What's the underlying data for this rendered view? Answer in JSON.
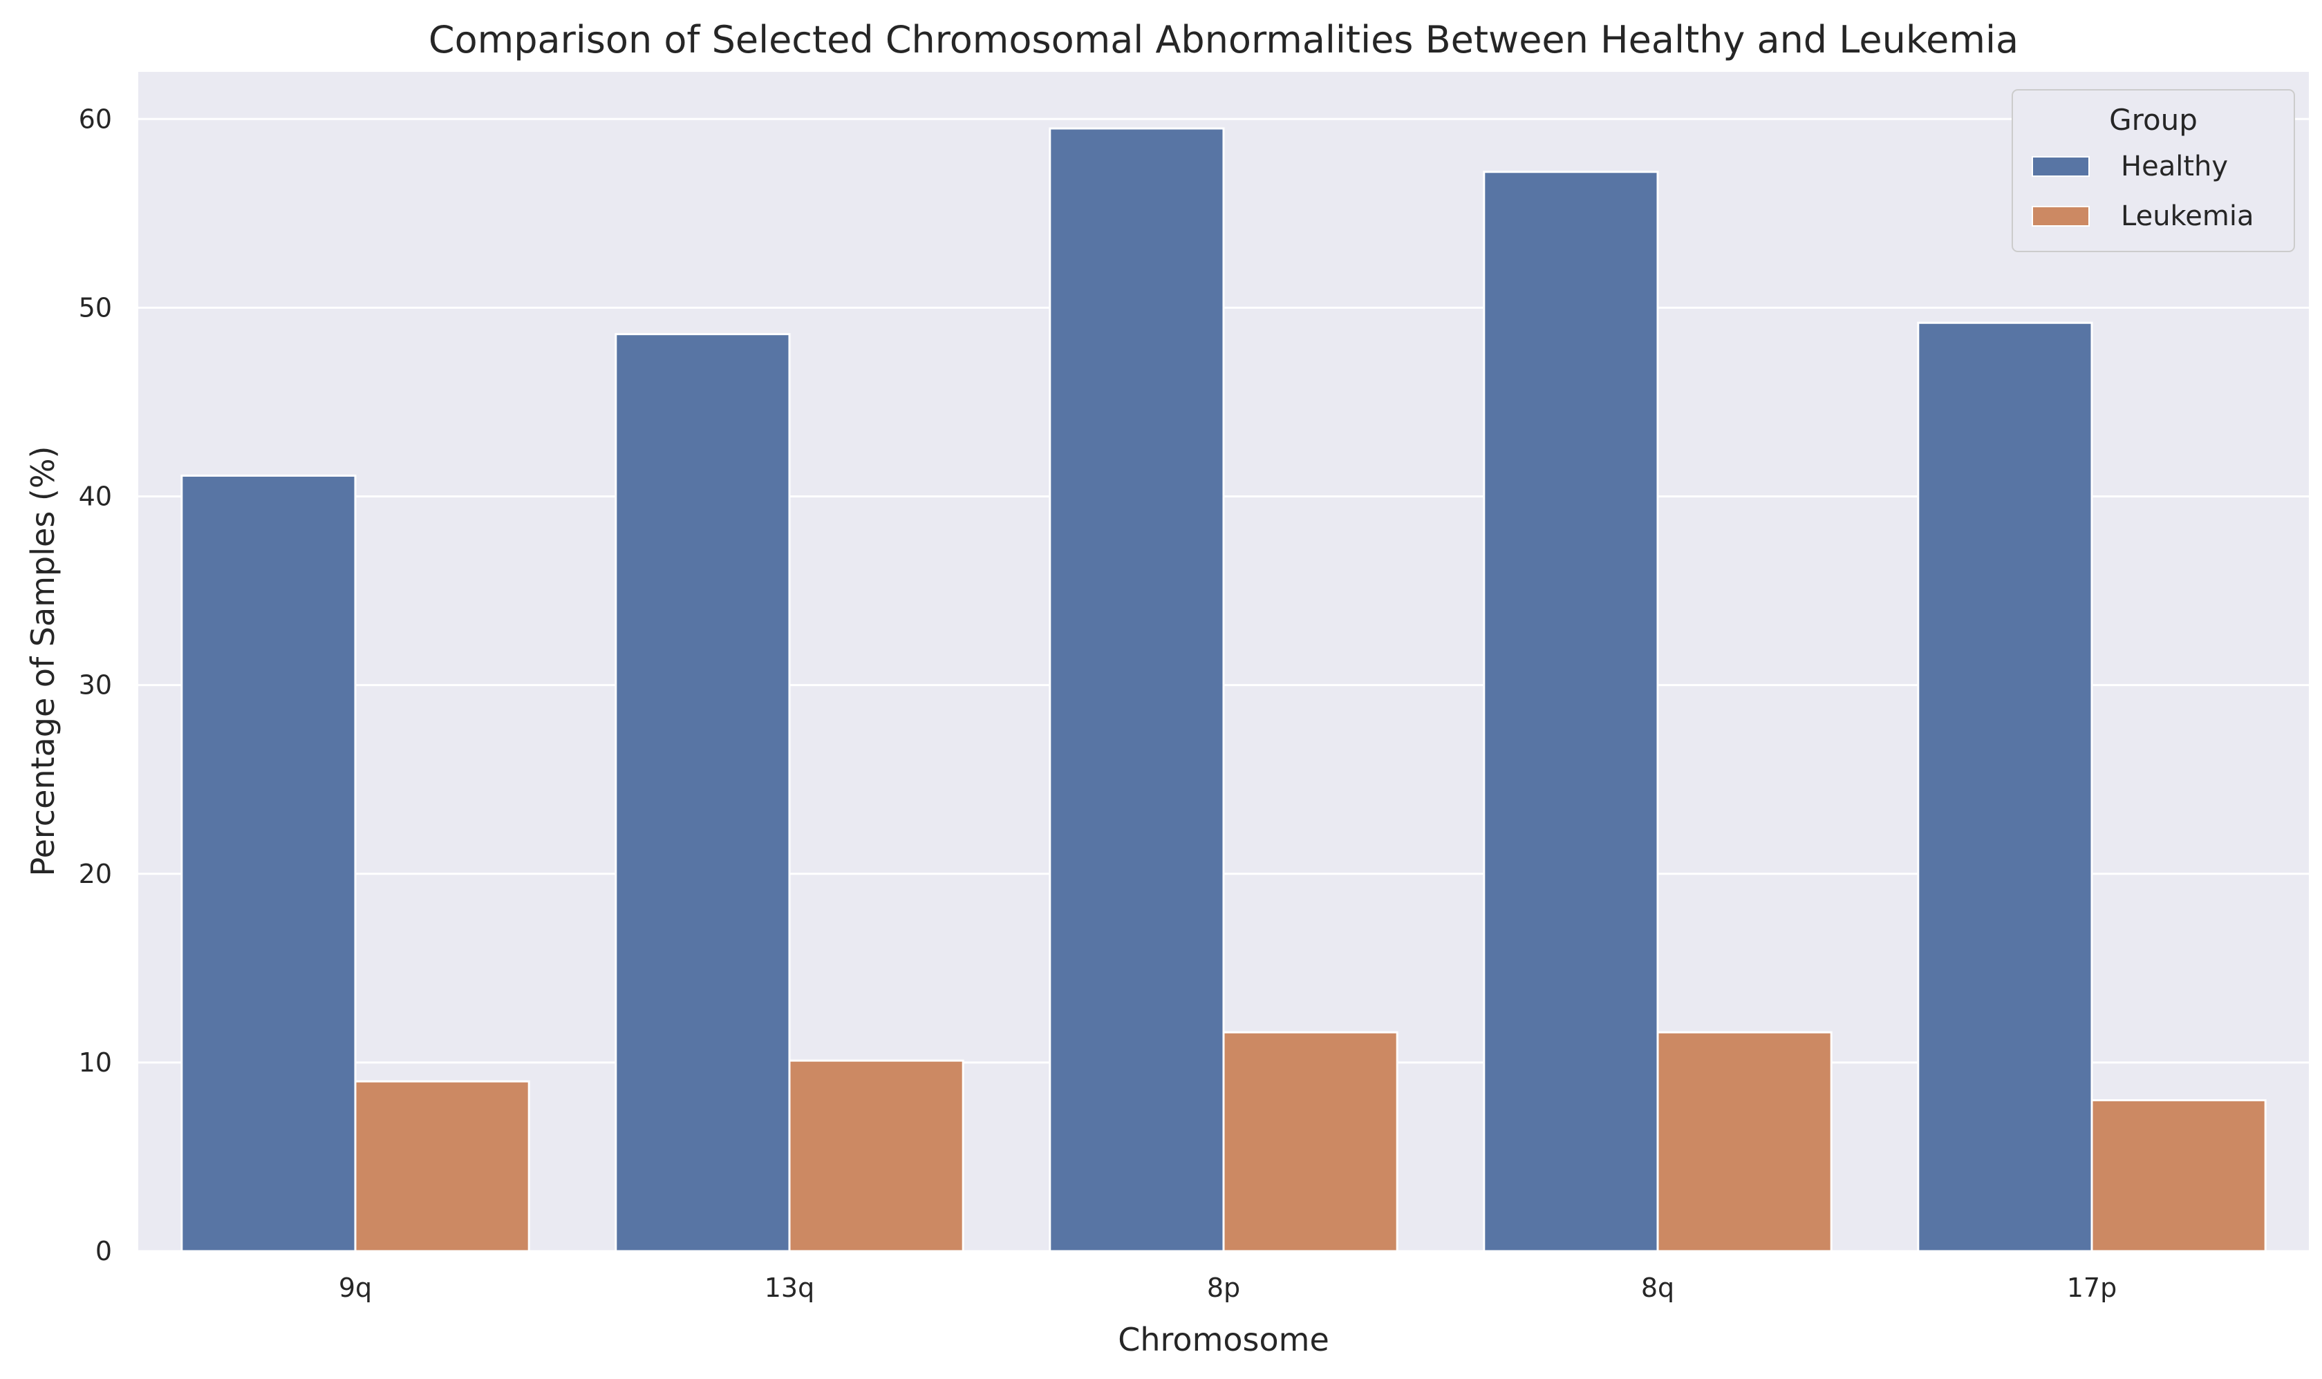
{
  "chart_data": {
    "type": "bar",
    "title": "Comparison of Selected Chromosomal Abnormalities Between Healthy and Leukemia",
    "xlabel": "Chromosome",
    "ylabel": "Percentage of Samples (%)",
    "categories": [
      "9q",
      "13q",
      "8p",
      "8q",
      "17p"
    ],
    "series": [
      {
        "name": "Healthy",
        "color": "#5875a4",
        "values": [
          41.1,
          48.6,
          59.5,
          57.2,
          49.2
        ]
      },
      {
        "name": "Leukemia",
        "color": "#cc8963",
        "values": [
          9.0,
          10.1,
          11.6,
          11.6,
          8.0
        ]
      }
    ],
    "ylim": [
      0,
      62.5
    ],
    "yticks": [
      "0",
      "10",
      "20",
      "30",
      "40",
      "50",
      "60"
    ],
    "legend": {
      "title": "Group",
      "placement": "top-right"
    },
    "grid": true,
    "background": "#eaeaf2"
  }
}
